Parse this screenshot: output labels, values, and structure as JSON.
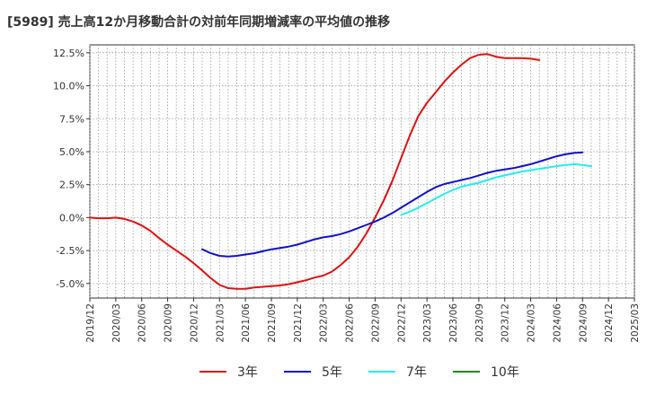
{
  "title": "[5989]  売上高12か月移動合計の対前年同期増減率の平均値の推移",
  "chart_data": {
    "type": "line",
    "title": "[5989]  売上高12か月移動合計の対前年同期増減率の平均値の推移",
    "xlabel": "",
    "ylabel": "",
    "ylim": [
      -6.1,
      13.1
    ],
    "y_ticks": [
      12.5,
      10.0,
      7.5,
      5.0,
      2.5,
      0.0,
      -2.5,
      -5.0
    ],
    "y_tick_labels": [
      "12.5%",
      "10.0%",
      "7.5%",
      "5.0%",
      "2.5%",
      "0.0%",
      "-2.5%",
      "-5.0%"
    ],
    "x_tick_labels": [
      "2019/12",
      "2020/03",
      "2020/06",
      "2020/09",
      "2020/12",
      "2021/03",
      "2021/06",
      "2021/09",
      "2021/12",
      "2022/03",
      "2022/06",
      "2022/09",
      "2022/12",
      "2023/03",
      "2023/06",
      "2023/09",
      "2023/12",
      "2024/03",
      "2024/06",
      "2024/09",
      "2024/12",
      "2025/03"
    ],
    "grid": true,
    "legend_position": "bottom",
    "series": [
      {
        "name": "3年",
        "color": "#dd1111",
        "start": "2019/12",
        "values": [
          0.0,
          -0.05,
          -0.05,
          0.0,
          -0.1,
          -0.3,
          -0.6,
          -1.0,
          -1.55,
          -2.05,
          -2.5,
          -2.95,
          -3.45,
          -4.0,
          -4.6,
          -5.1,
          -5.35,
          -5.4,
          -5.4,
          -5.3,
          -5.25,
          -5.2,
          -5.15,
          -5.05,
          -4.9,
          -4.75,
          -4.55,
          -4.4,
          -4.1,
          -3.6,
          -3.0,
          -2.2,
          -1.2,
          0.0,
          1.3,
          2.8,
          4.5,
          6.2,
          7.7,
          8.7,
          9.5,
          10.3,
          11.0,
          11.6,
          12.1,
          12.35,
          12.4,
          12.2,
          12.1,
          12.1,
          12.1,
          12.05,
          11.95
        ]
      },
      {
        "name": "5年",
        "color": "#1111cc",
        "start": "2021/01",
        "values": [
          -2.4,
          -2.7,
          -2.9,
          -2.95,
          -2.9,
          -2.8,
          -2.7,
          -2.55,
          -2.4,
          -2.3,
          -2.2,
          -2.05,
          -1.85,
          -1.65,
          -1.5,
          -1.4,
          -1.25,
          -1.05,
          -0.8,
          -0.55,
          -0.3,
          0.0,
          0.35,
          0.75,
          1.15,
          1.55,
          1.95,
          2.3,
          2.55,
          2.7,
          2.85,
          3.0,
          3.2,
          3.4,
          3.55,
          3.65,
          3.75,
          3.9,
          4.05,
          4.25,
          4.45,
          4.65,
          4.8,
          4.9,
          4.95
        ]
      },
      {
        "name": "7年",
        "color": "#22eeee",
        "start": "2022/12",
        "values": [
          0.2,
          0.45,
          0.75,
          1.1,
          1.45,
          1.8,
          2.1,
          2.35,
          2.5,
          2.65,
          2.85,
          3.05,
          3.2,
          3.35,
          3.5,
          3.6,
          3.7,
          3.8,
          3.9,
          4.0,
          4.05,
          4.0,
          3.9
        ]
      },
      {
        "name": "10年",
        "color": "#228822",
        "start": "2019/12",
        "values": []
      }
    ]
  }
}
